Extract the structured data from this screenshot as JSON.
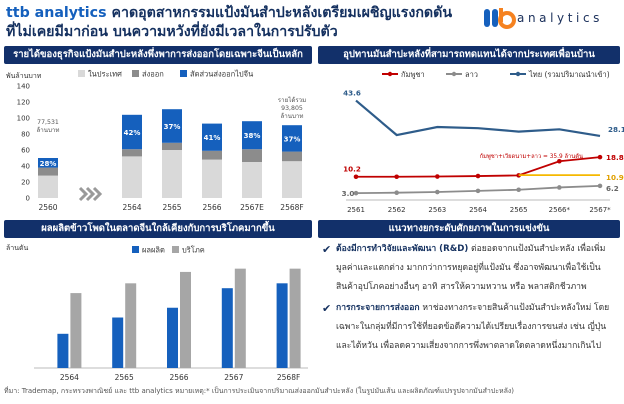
{
  "header": {
    "brand": "ttb analytics",
    "title_line1_rest": "คาดอุตสาหกรรมแป้งมันสำปะหลังเตรียมเผชิญแรงกดดัน",
    "title_line2": "ที่ไม่เคยมีมาก่อน บนความหวังที่ยังมีเวลาในการปรับตัว"
  },
  "logo": {
    "mark": "ttb",
    "wordmark": "analytics"
  },
  "colors": {
    "navy": "#12306a",
    "blue": "#1560bd",
    "light_gray": "#d9d9d9",
    "mid_gray": "#8c8c8c",
    "red": "#c00000",
    "yellow": "#f5b800"
  },
  "panels": {
    "p1_title": "รายได้ของธุรกิจแป้งมันสำปะหลังพึ่งพาการส่งออกโดยเฉพาะจีนเป็นหลัก",
    "p2_title": "อุปทานมันสำปะหลังที่สามารถทดแทนได้จากประเทศเพื่อนบ้าน",
    "p3_title": "ผลผลิตข้าวโพดในตลาดจีนใกล้เคียงกับการบริโภคมากขึ้น",
    "p4_title": "แนวทางยกระดับศักยภาพในการแข่งขัน"
  },
  "chart_data": [
    {
      "type": "bar",
      "stacked": true,
      "ylabel": "พันล้านบาท",
      "ylim": [
        0,
        140
      ],
      "yticks": [
        0,
        20,
        40,
        60,
        80,
        100,
        120,
        140
      ],
      "categories": [
        "2560",
        "2564",
        "2565",
        "2566",
        "2567E",
        "2568F"
      ],
      "series": [
        {
          "name": "ในประเทศ",
          "color": "#d9d9d9",
          "values": [
            28,
            52,
            60,
            48,
            45,
            46
          ]
        },
        {
          "name": "ส่งออก",
          "color": "#8c8c8c",
          "values": [
            10,
            9,
            9,
            11,
            16,
            12
          ]
        },
        {
          "name": "สัดส่วนส่งออกไปจีน",
          "color": "#1560bd",
          "values": [
            12,
            43,
            42,
            34,
            35,
            33
          ]
        }
      ],
      "share_labels": [
        "28%",
        "42%",
        "37%",
        "41%",
        "38%",
        "37%"
      ],
      "annotations": [
        {
          "text_l1": "77,531",
          "text_l2": "ล้านบาท",
          "category": "2560"
        },
        {
          "text_l1": "รายได้รวม",
          "text_l2": "93,805",
          "text_l3": "ล้านบาท",
          "category": "2568F"
        }
      ],
      "legend": "top"
    },
    {
      "type": "line",
      "categories": [
        "2561",
        "2562",
        "2563",
        "2564",
        "2565",
        "2566*",
        "2567*"
      ],
      "ylim": [
        0,
        50
      ],
      "series": [
        {
          "name": "กัมพูชา",
          "color": "#c00000",
          "values": [
            10.2,
            10.2,
            10.3,
            10.5,
            10.8,
            17.0,
            18.8
          ]
        },
        {
          "name": "ลาว",
          "color": "#8c8c8c",
          "values": [
            3.0,
            3.2,
            3.5,
            4.0,
            4.5,
            5.5,
            6.2
          ]
        },
        {
          "name": "ไทย (รวมปริมาณนำเข้า)",
          "color": "#2e5c8a",
          "values": [
            43.6,
            28.5,
            32.0,
            31.5,
            30.0,
            31.0,
            28.1
          ]
        },
        {
          "name": "",
          "color": "#f5b800",
          "values": [
            null,
            null,
            null,
            null,
            10.9,
            10.9,
            10.9
          ]
        }
      ],
      "data_labels": [
        "43.6",
        "28.1",
        "10.2",
        "18.8",
        "10.9",
        "6.2",
        "3.0"
      ],
      "annotation": "กัมพูชา+เวียดนาม+ลาว = 35.9 ล้านตัน",
      "legend": "top"
    },
    {
      "type": "bar",
      "ylabel": "ล้านตัน",
      "categories": [
        "2564",
        "2565",
        "2566",
        "2567",
        "2568F"
      ],
      "ylim": [
        240,
        310
      ],
      "series": [
        {
          "name": "ผลผลิต",
          "color": "#1560bd",
          "values": [
            261,
            271,
            277,
            289,
            292
          ]
        },
        {
          "name": "บริโภค",
          "color": "#a6a6a6",
          "values": [
            286,
            292,
            299,
            301,
            301
          ]
        }
      ],
      "legend": "top"
    }
  ],
  "bullets": [
    {
      "head": "ต้องมีการทำวิจัยและพัฒนา (R&D)",
      "body": " ต่อยอดจากแป้งมันสำปะหลัง เพื่อเพิ่มมูลค่าและแตกต่าง มากกว่าการหยุดอยู่ที่แป้งมัน ซึ่งอาจพัฒนาเพื่อใช้เป็นสินค้าอุปโภคอย่างอื่นๆ อาทิ สารให้ความหวาน หรือ พลาสติกชีวภาพ"
    },
    {
      "head": "การกระจายการส่งออก",
      "body": " หาช่องทางกระจายสินค้าแป้งมันสำปะหลังใหม่ โดยเฉพาะในกลุ่มที่มีการใช้ที่ยอดข้อดีความได้เปรียบเรื่องการขนส่ง เช่น ญี่ปุ่น และไต้หวัน เพื่อลดความเสี่ยงจากการพึ่งพาตลาดใดตลาดหนึ่งมากเกินไป"
    }
  ],
  "footer": "ที่มา: Trademap, กระทรวงพาณิชย์ และ ttb analytics หมายเหตุ:* เป็นการประเมินจากปริมาณส่งออกมันสำปะหลัง (ในรูปมันเส้น และผลิตภัณฑ์แปรรูปจากมันสำปะหลัง)"
}
